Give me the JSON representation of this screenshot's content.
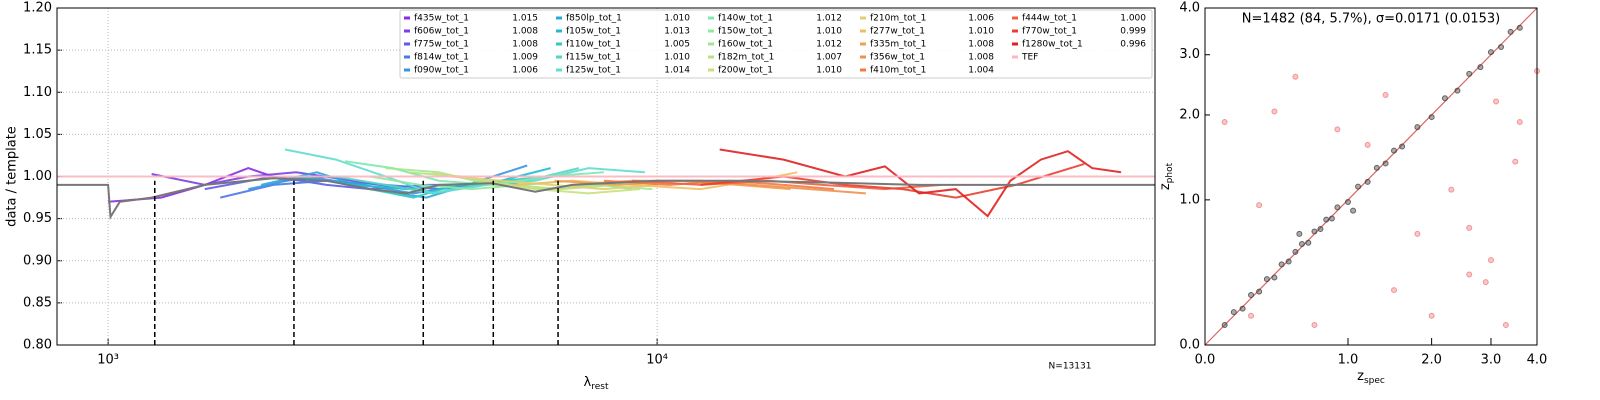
{
  "chart_data": [
    {
      "type": "line",
      "xscale": "log",
      "grid": true,
      "ylabel": "data / template",
      "xlabel": "λ",
      "xlabel_sub": "rest",
      "annotation": "N=13131",
      "xlim": [
        807,
        80700
      ],
      "ylim": [
        0.8,
        1.2
      ],
      "xticks": [
        {
          "value": 1000,
          "label": "10³"
        },
        {
          "value": 10000,
          "label": "10⁴"
        }
      ],
      "yticks": [
        {
          "value": 0.8,
          "label": "0.80"
        },
        {
          "value": 0.85,
          "label": "0.85"
        },
        {
          "value": 0.9,
          "label": "0.90"
        },
        {
          "value": 0.95,
          "label": "0.95"
        },
        {
          "value": 1.0,
          "label": "1.00"
        },
        {
          "value": 1.05,
          "label": "1.05"
        },
        {
          "value": 1.1,
          "label": "1.10"
        },
        {
          "value": 1.15,
          "label": "1.15"
        },
        {
          "value": 1.2,
          "label": "1.20"
        }
      ],
      "template": {
        "color": "#777777",
        "x": [
          807,
          1000,
          1010,
          1050,
          1200,
          1500,
          2000,
          2500,
          3000,
          3500,
          4000,
          5000,
          6000,
          7000,
          10000,
          14000,
          20000,
          30000,
          40000,
          80700
        ],
        "y": [
          0.99,
          0.99,
          0.952,
          0.97,
          0.975,
          0.99,
          0.998,
          0.995,
          0.985,
          0.98,
          0.99,
          0.992,
          0.982,
          0.99,
          0.995,
          0.995,
          0.993,
          0.99,
          0.99,
          0.99
        ]
      },
      "vlines": [
        1216,
        2180,
        3750,
        5030,
        6600
      ],
      "vline_top": 0.995,
      "series": [
        {
          "name": "f435w_tot_1",
          "value": 1.015,
          "label": "1.015",
          "color": "#8a2be2",
          "x": [
            1000,
            1250,
            1500,
            1800,
            2100,
            2500
          ],
          "y": [
            0.97,
            0.975,
            0.99,
            1.01,
            0.995,
            1.0
          ]
        },
        {
          "name": "f606w_tot_1",
          "value": 1.008,
          "label": "1.008",
          "color": "#7b3fe4",
          "x": [
            1200,
            1500,
            1800,
            2200,
            2800,
            3500
          ],
          "y": [
            1.003,
            0.99,
            1.0,
            1.005,
            0.995,
            0.985
          ]
        },
        {
          "name": "f775w_tot_1",
          "value": 1.008,
          "label": "1.008",
          "color": "#5e5be8",
          "x": [
            1500,
            2000,
            2500,
            3000,
            3800,
            4500
          ],
          "y": [
            0.985,
            1.0,
            0.99,
            0.985,
            0.99,
            0.99
          ]
        },
        {
          "name": "f814w_tot_1",
          "value": 1.009,
          "label": "1.009",
          "color": "#4a78e8",
          "x": [
            1600,
            2000,
            2500,
            3200,
            4000,
            4800
          ],
          "y": [
            0.975,
            0.99,
            0.995,
            0.99,
            0.985,
            0.99
          ]
        },
        {
          "name": "f090w_tot_1",
          "value": 1.006,
          "label": "1.006",
          "color": "#3a95e0",
          "x": [
            1800,
            2300,
            2900,
            3600,
            4500,
            5800
          ],
          "y": [
            0.985,
            1.0,
            0.99,
            0.98,
            0.99,
            1.013
          ]
        },
        {
          "name": "f850lp_tot_1",
          "value": 1.01,
          "label": "1.010",
          "color": "#2aa8d8",
          "x": [
            1900,
            2400,
            3000,
            3800,
            4800,
            5700
          ],
          "y": [
            0.99,
            1.005,
            0.985,
            0.975,
            0.995,
            0.99
          ]
        },
        {
          "name": "f105w_tot_1",
          "value": 1.013,
          "label": "1.013",
          "color": "#20bcd0",
          "x": [
            2200,
            2800,
            3500,
            4300,
            5200,
            6400
          ],
          "y": [
            1.0,
            0.99,
            0.985,
            0.99,
            0.995,
            1.01
          ]
        },
        {
          "name": "f110w_tot_1",
          "value": 1.005,
          "label": "1.005",
          "color": "#30c8c0",
          "x": [
            2500,
            3000,
            3600,
            4300,
            5200,
            6500
          ],
          "y": [
            0.995,
            0.985,
            0.975,
            0.99,
            0.995,
            1.0
          ]
        },
        {
          "name": "f115w_tot_1",
          "value": 1.01,
          "label": "1.010",
          "color": "#50d8c0",
          "x": [
            2600,
            3200,
            3900,
            4700,
            5800,
            7200
          ],
          "y": [
            1.0,
            0.99,
            0.98,
            0.99,
            0.995,
            1.01
          ]
        },
        {
          "name": "f125w_tot_1",
          "value": 1.014,
          "label": "1.014",
          "color": "#60dcd0",
          "x": [
            2100,
            2600,
            3200,
            3900,
            4900,
            6000,
            7500,
            9500
          ],
          "y": [
            1.032,
            1.02,
            1.0,
            0.98,
            0.99,
            0.995,
            1.01,
            1.005
          ]
        },
        {
          "name": "f140w_tot_1",
          "value": 1.012,
          "label": "1.012",
          "color": "#80e8b0",
          "x": [
            2700,
            3300,
            4000,
            5000,
            6300,
            8000
          ],
          "y": [
            1.018,
            1.01,
            0.995,
            0.99,
            1.0,
            1.005
          ]
        },
        {
          "name": "f150w_tot_1",
          "value": 1.01,
          "label": "1.010",
          "color": "#90e8a0",
          "x": [
            3000,
            3700,
            4600,
            5700,
            7000,
            9000
          ],
          "y": [
            1.0,
            0.99,
            0.985,
            0.99,
            0.995,
            0.985
          ]
        },
        {
          "name": "f160w_tot_1",
          "value": 1.012,
          "label": "1.012",
          "color": "#a0e890",
          "x": [
            3200,
            4000,
            5000,
            6200,
            7800,
            9800
          ],
          "y": [
            1.01,
            1.005,
            0.99,
            0.985,
            0.99,
            0.985
          ]
        },
        {
          "name": "f182m_tot_1",
          "value": 1.007,
          "label": "1.007",
          "color": "#b8e080",
          "x": [
            3500,
            4400,
            5400,
            6700,
            8400
          ],
          "y": [
            1.005,
            1.0,
            0.99,
            0.985,
            0.99
          ]
        },
        {
          "name": "f200w_tot_1",
          "value": 1.01,
          "label": "1.010",
          "color": "#c8e080",
          "x": [
            3900,
            4800,
            6000,
            7500,
            9300
          ],
          "y": [
            1.005,
            0.995,
            0.985,
            0.98,
            0.985
          ]
        },
        {
          "name": "f210m_tot_1",
          "value": 1.006,
          "label": "1.006",
          "color": "#e0d070",
          "x": [
            4200,
            5200,
            6400,
            8000,
            10000
          ],
          "y": [
            1.0,
            0.995,
            0.99,
            0.985,
            0.99
          ]
        },
        {
          "name": "f277w_tot_1",
          "value": 1.01,
          "label": "1.010",
          "color": "#f0c060",
          "x": [
            5500,
            7000,
            9000,
            12000,
            15000,
            18000
          ],
          "y": [
            0.99,
            0.995,
            0.99,
            0.985,
            0.995,
            1.005
          ]
        },
        {
          "name": "f335m_tot_1",
          "value": 1.008,
          "label": "1.008",
          "color": "#f0a050",
          "x": [
            6500,
            8500,
            11000,
            14000,
            17500
          ],
          "y": [
            0.995,
            0.99,
            0.995,
            0.99,
            0.985
          ]
        },
        {
          "name": "f356w_tot_1",
          "value": 1.008,
          "label": "1.008",
          "color": "#f09050",
          "x": [
            7000,
            9000,
            12000,
            15000,
            19000,
            24000
          ],
          "y": [
            0.99,
            0.995,
            0.995,
            0.99,
            0.985,
            0.98
          ]
        },
        {
          "name": "f410m_tot_1",
          "value": 1.004,
          "label": "1.004",
          "color": "#f07a40",
          "x": [
            8000,
            10500,
            13500,
            17000,
            21000
          ],
          "y": [
            0.995,
            0.99,
            0.995,
            0.99,
            0.985
          ]
        },
        {
          "name": "f444w_tot_1",
          "value": 1.0,
          "label": "1.000",
          "color": "#f06040",
          "x": [
            9000,
            12000,
            16000,
            20000,
            26000,
            33000
          ],
          "y": [
            0.995,
            0.99,
            0.995,
            0.99,
            0.985,
            0.99
          ]
        },
        {
          "name": "f770w_tot_1",
          "value": 0.999,
          "label": "0.999",
          "color": "#e84030",
          "x": [
            12000,
            17000,
            22000,
            28000,
            35000,
            45000,
            60000
          ],
          "y": [
            0.99,
            1.0,
            0.99,
            0.985,
            0.975,
            0.99,
            1.015
          ]
        },
        {
          "name": "f1280w_tot_1",
          "value": 0.996,
          "label": "0.996",
          "color": "#e02020",
          "x": [
            13000,
            17000,
            22000,
            26000,
            30000,
            35000,
            40000,
            44000,
            50000,
            56000,
            62000,
            70000
          ],
          "y": [
            1.032,
            1.02,
            1.0,
            1.012,
            0.98,
            0.985,
            0.953,
            0.995,
            1.02,
            1.03,
            1.01,
            1.005
          ]
        },
        {
          "name": "TEF",
          "color": "#ffb6c1",
          "x": [
            807,
            80700
          ],
          "y": [
            1.0,
            1.0
          ]
        }
      ]
    },
    {
      "type": "scatter",
      "xscale": "log1p",
      "title": "N=1482 (84,  5.7%), σ=0.0171 (0.0153)",
      "xlabel": "z",
      "xlabel_sub": "spec",
      "ylabel": "z",
      "ylabel_sub": "phot",
      "xlim": [
        0,
        4
      ],
      "ylim": [
        0,
        4
      ],
      "xticks": [
        {
          "value": 0,
          "label": "0.0"
        },
        {
          "value": 1,
          "label": "1.0"
        },
        {
          "value": 2,
          "label": "2.0"
        },
        {
          "value": 3,
          "label": "3.0"
        },
        {
          "value": 4,
          "label": "4.0"
        }
      ],
      "yticks": [
        {
          "value": 0,
          "label": "0.0"
        },
        {
          "value": 1,
          "label": "1.0"
        },
        {
          "value": 2,
          "label": "2.0"
        },
        {
          "value": 3,
          "label": "3.0"
        },
        {
          "value": 4,
          "label": "4.0"
        }
      ],
      "line_color": "#e06060",
      "series": [
        {
          "color": "#444444",
          "x": [
            0.1,
            0.15,
            0.2,
            0.25,
            0.3,
            0.35,
            0.4,
            0.45,
            0.5,
            0.55,
            0.6,
            0.65,
            0.7,
            0.75,
            0.8,
            0.85,
            0.9,
            1.0,
            1.1,
            1.2,
            1.3,
            1.4,
            1.5,
            1.6,
            1.8,
            2.0,
            2.2,
            2.4,
            2.6,
            2.8,
            3.0,
            3.2,
            3.4,
            3.6,
            0.58,
            1.05
          ],
          "y": [
            0.1,
            0.17,
            0.19,
            0.27,
            0.29,
            0.37,
            0.38,
            0.47,
            0.49,
            0.56,
            0.62,
            0.63,
            0.72,
            0.74,
            0.82,
            0.83,
            0.93,
            0.98,
            1.13,
            1.18,
            1.33,
            1.38,
            1.53,
            1.58,
            1.83,
            1.97,
            2.25,
            2.37,
            2.65,
            2.77,
            3.05,
            3.15,
            3.46,
            3.55,
            0.7,
            0.9
          ]
        },
        {
          "color": "#f08080",
          "x": [
            0.1,
            0.4,
            0.55,
            0.3,
            0.25,
            0.9,
            1.2,
            1.5,
            1.8,
            2.0,
            2.3,
            2.6,
            2.9,
            3.0,
            3.1,
            3.3,
            3.5,
            3.6,
            4.0,
            0.7,
            1.4,
            2.6
          ],
          "y": [
            1.9,
            2.05,
            2.6,
            0.95,
            0.15,
            1.8,
            1.6,
            0.3,
            0.7,
            0.15,
            1.1,
            0.4,
            0.35,
            0.5,
            2.2,
            0.1,
            1.4,
            1.9,
            2.7,
            0.1,
            2.3,
            0.75
          ]
        }
      ]
    }
  ]
}
